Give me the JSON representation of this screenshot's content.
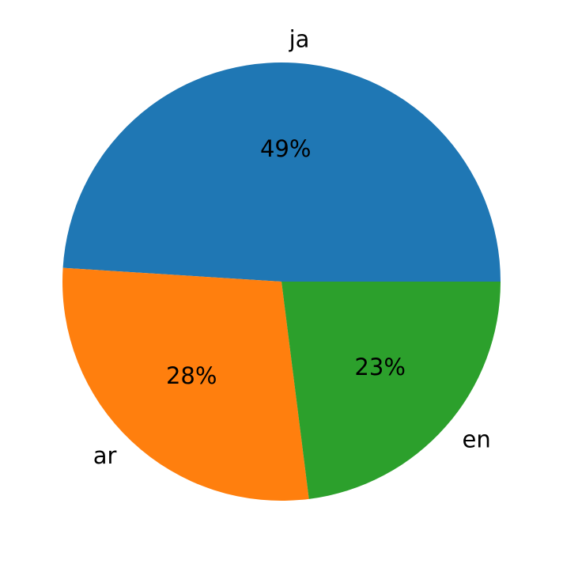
{
  "chart_data": {
    "type": "pie",
    "categories": [
      "ja",
      "ar",
      "en"
    ],
    "values": [
      49,
      28,
      23
    ],
    "value_labels": [
      "49%",
      "28%",
      "23%"
    ],
    "colors": [
      "#1f77b4",
      "#ff7f0e",
      "#2ca02c"
    ],
    "start_angle": 0
  }
}
